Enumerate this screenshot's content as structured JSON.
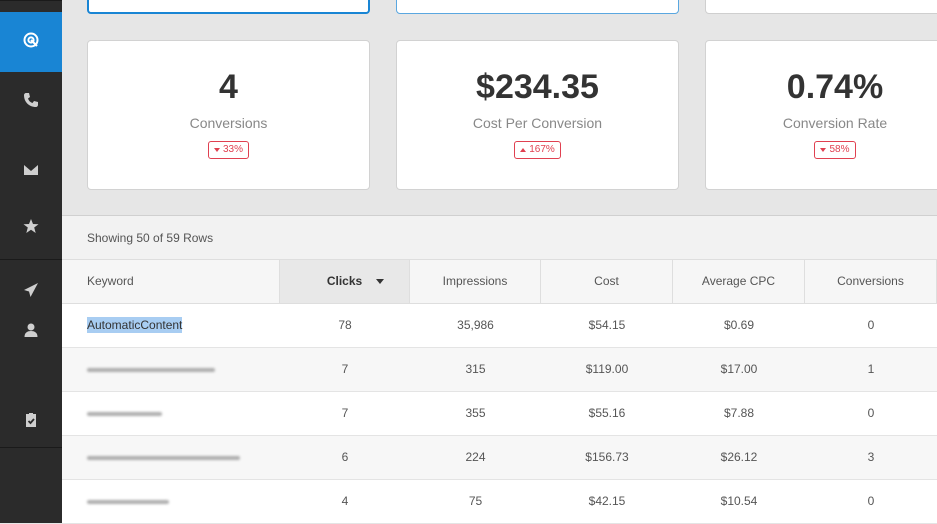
{
  "sidebar": {
    "items": [
      {
        "icon": "target-icon",
        "active": true
      },
      {
        "icon": "phone-icon",
        "active": false
      },
      {
        "icon": "envelope-icon",
        "active": false
      },
      {
        "icon": "star-icon",
        "active": false
      },
      {
        "icon": "paper-plane-icon",
        "active": false
      },
      {
        "icon": "user-icon",
        "active": false
      },
      {
        "icon": "clipboard-check-icon",
        "active": false
      }
    ]
  },
  "metrics": [
    {
      "value": "4",
      "label": "Conversions",
      "change": "33%",
      "direction": "down"
    },
    {
      "value": "$234.35",
      "label": "Cost Per Conversion",
      "change": "167%",
      "direction": "up"
    },
    {
      "value": "0.74%",
      "label": "Conversion Rate",
      "change": "58%",
      "direction": "down"
    }
  ],
  "table": {
    "showing": "Showing 50 of 59 Rows",
    "columns": [
      "Keyword",
      "Clicks",
      "Impressions",
      "Cost",
      "Average CPC",
      "Conversions"
    ],
    "sorted_column": "Clicks",
    "rows": [
      {
        "keyword": "AutomaticContent",
        "keyword_visible": true,
        "clicks": "78",
        "impressions": "35,986",
        "cost": "$54.15",
        "cpc": "$0.69",
        "conversions": "0"
      },
      {
        "keyword": "",
        "keyword_visible": false,
        "clicks": "7",
        "impressions": "315",
        "cost": "$119.00",
        "cpc": "$17.00",
        "conversions": "1"
      },
      {
        "keyword": "",
        "keyword_visible": false,
        "clicks": "7",
        "impressions": "355",
        "cost": "$55.16",
        "cpc": "$7.88",
        "conversions": "0"
      },
      {
        "keyword": "",
        "keyword_visible": false,
        "clicks": "6",
        "impressions": "224",
        "cost": "$156.73",
        "cpc": "$26.12",
        "conversions": "3"
      },
      {
        "keyword": "",
        "keyword_visible": false,
        "clicks": "4",
        "impressions": "75",
        "cost": "$42.15",
        "cpc": "$10.54",
        "conversions": "0"
      }
    ]
  },
  "colors": {
    "accent": "#1985d4",
    "badge": "#e04050",
    "sidebar": "#2b2b2b"
  }
}
